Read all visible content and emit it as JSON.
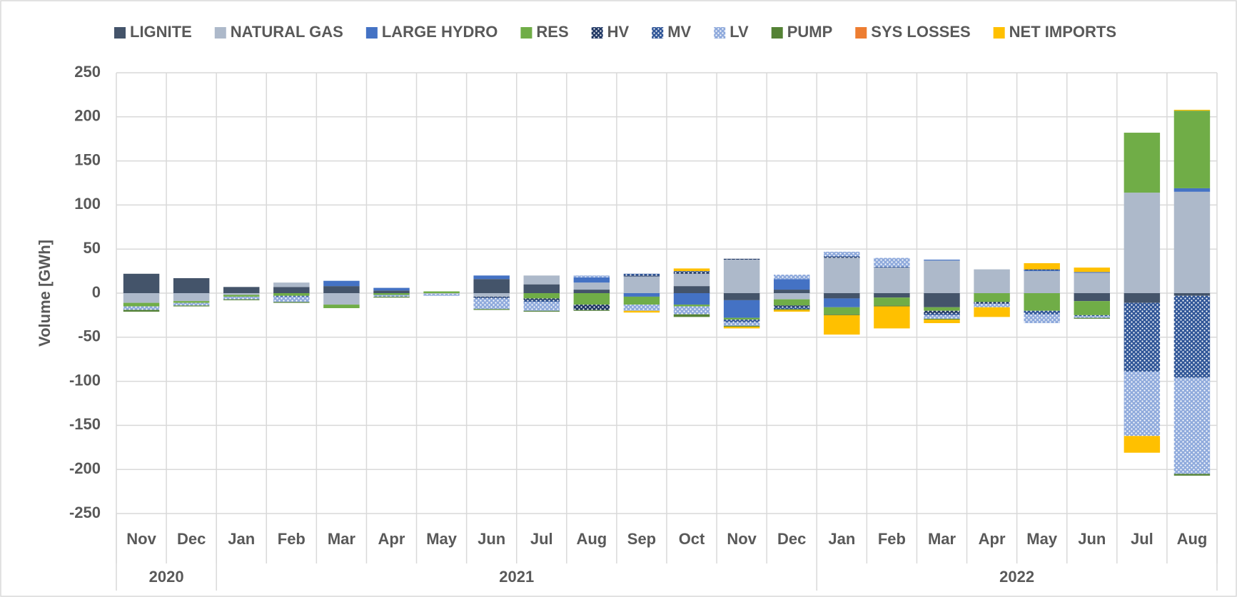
{
  "chart_data": {
    "type": "stacked_bar",
    "y_label": "Volume [GWh]",
    "categories": [
      "Nov",
      "Dec",
      "Jan",
      "Feb",
      "Mar",
      "Apr",
      "May",
      "Jun",
      "Jul",
      "Aug",
      "Sep",
      "Oct",
      "Nov",
      "Dec",
      "Jan",
      "Feb",
      "Mar",
      "Apr",
      "May",
      "Jun",
      "Jul",
      "Aug"
    ],
    "category_groups": [
      {
        "label": "2020",
        "span": 2
      },
      {
        "label": "2021",
        "span": 12
      },
      {
        "label": "2022",
        "span": 8
      }
    ],
    "ylim": [
      -250,
      250
    ],
    "yticks": [
      -250,
      -200,
      -150,
      -100,
      -50,
      0,
      50,
      100,
      150,
      200,
      250
    ],
    "grid": true,
    "legend": "top",
    "series": [
      {
        "name": "LIGNITE",
        "color": "#44546a",
        "values": [
          22,
          17,
          7,
          7,
          8,
          3,
          0,
          16,
          10,
          4,
          0,
          8,
          -8,
          4,
          -6,
          -5,
          -16,
          0,
          0,
          -9,
          -11,
          -3
        ]
      },
      {
        "name": "NATURAL GAS",
        "color": "#adb9ca",
        "values": [
          -11,
          -9,
          -2,
          5,
          -13,
          0,
          -1,
          -4,
          10,
          8,
          19,
          14,
          38,
          -7,
          40,
          29,
          37,
          27,
          25,
          23,
          114,
          115
        ]
      },
      {
        "name": "LARGE HYDRO",
        "color": "#4472c4",
        "values": [
          0,
          0,
          0,
          0,
          6,
          3,
          0,
          4,
          0,
          6,
          -4,
          -13,
          -20,
          12,
          -10,
          0,
          1,
          0,
          1,
          1,
          0,
          4
        ]
      },
      {
        "name": "RES",
        "color": "#70ad47",
        "values": [
          -4,
          -2,
          -2,
          -3,
          -4,
          -2,
          2,
          0,
          -6,
          -13,
          -9,
          -2,
          -2,
          -7,
          -8,
          -9,
          -4,
          -10,
          -20,
          -16,
          68,
          88
        ]
      },
      {
        "name": "HV",
        "color": "#203864",
        "pattern": "dots",
        "values": [
          0,
          0,
          0,
          0,
          0,
          0,
          0,
          -1,
          -2,
          -6,
          1,
          2,
          1,
          -2,
          1,
          0,
          -3,
          -2,
          1,
          0,
          0,
          0
        ]
      },
      {
        "name": "MV",
        "color": "#2f5597",
        "pattern": "dots",
        "values": [
          0,
          0,
          0,
          -1,
          0,
          0,
          0,
          -1,
          -2,
          0,
          2,
          1,
          -3,
          -2,
          1,
          1,
          -2,
          0,
          -4,
          -1,
          -78,
          -93
        ]
      },
      {
        "name": "LV",
        "color": "#8faadc",
        "pattern": "dots",
        "values": [
          -4,
          -3,
          -3,
          -6,
          0,
          -2,
          -2,
          -12,
          -10,
          2,
          -7,
          -9,
          -4,
          5,
          5,
          10,
          -4,
          -4,
          -10,
          -2,
          -73,
          -109
        ]
      },
      {
        "name": "PUMP",
        "color": "#548235",
        "values": [
          -2,
          -1,
          -1,
          -1,
          0,
          -1,
          0,
          -1,
          -1,
          -1,
          0,
          -3,
          -1,
          -1,
          -1,
          -1,
          -1,
          0,
          0,
          -1,
          0,
          -2
        ]
      },
      {
        "name": "SYS LOSSES",
        "color": "#ed7d31",
        "values": [
          0,
          0,
          0,
          0,
          0,
          0,
          0,
          0,
          0,
          0,
          0,
          0,
          0,
          0,
          0,
          0,
          0,
          0,
          0,
          0,
          0,
          0
        ]
      },
      {
        "name": "NET IMPORTS",
        "color": "#ffc000",
        "values": [
          0,
          0,
          0,
          0,
          0,
          0,
          0,
          0,
          0,
          0,
          -2,
          3,
          -2,
          -2,
          -22,
          -25,
          -4,
          -11,
          7,
          5,
          -19,
          1
        ]
      }
    ]
  }
}
